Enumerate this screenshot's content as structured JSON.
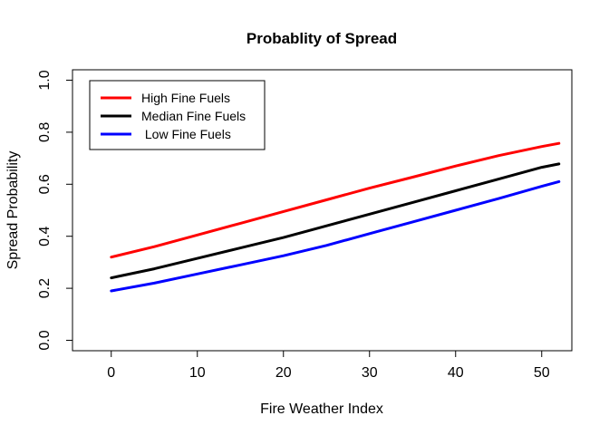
{
  "chart_data": {
    "type": "line",
    "title": "Probablity of Spread",
    "xlabel": "Fire Weather Index",
    "ylabel": "Spread Probability",
    "xlim": [
      -4.5,
      53.5
    ],
    "ylim": [
      -0.04,
      1.04
    ],
    "x_ticks": [
      0,
      10,
      20,
      30,
      40,
      50
    ],
    "y_ticks": [
      0.0,
      0.2,
      0.4,
      0.6,
      0.8,
      1.0
    ],
    "x_tick_labels": [
      "0",
      "10",
      "20",
      "30",
      "40",
      "50"
    ],
    "y_tick_labels": [
      "0.0",
      "0.2",
      "0.4",
      "0.6",
      "0.8",
      "1.0"
    ],
    "grid": false,
    "legend_position": "top-left",
    "series": [
      {
        "name": "High Fine Fuels",
        "color": "#ff0000",
        "x": [
          0,
          5,
          10,
          15,
          20,
          25,
          30,
          35,
          40,
          45,
          50,
          52
        ],
        "y": [
          0.32,
          0.36,
          0.405,
          0.45,
          0.495,
          0.54,
          0.585,
          0.627,
          0.67,
          0.71,
          0.745,
          0.757
        ]
      },
      {
        "name": "Median Fine Fuels",
        "color": "#000000",
        "x": [
          0,
          5,
          10,
          15,
          20,
          25,
          30,
          35,
          40,
          45,
          50,
          52
        ],
        "y": [
          0.24,
          0.275,
          0.315,
          0.355,
          0.395,
          0.44,
          0.485,
          0.53,
          0.575,
          0.62,
          0.665,
          0.678
        ]
      },
      {
        "name": "Low Fine Fuels",
        "color": "#0000ff",
        "x": [
          0,
          5,
          10,
          15,
          20,
          25,
          30,
          35,
          40,
          45,
          50,
          52
        ],
        "y": [
          0.19,
          0.22,
          0.255,
          0.29,
          0.325,
          0.365,
          0.41,
          0.455,
          0.5,
          0.545,
          0.592,
          0.61
        ]
      }
    ],
    "legend_labels": [
      "High Fine Fuels",
      "Median Fine Fuels",
      " Low Fine Fuels"
    ]
  }
}
